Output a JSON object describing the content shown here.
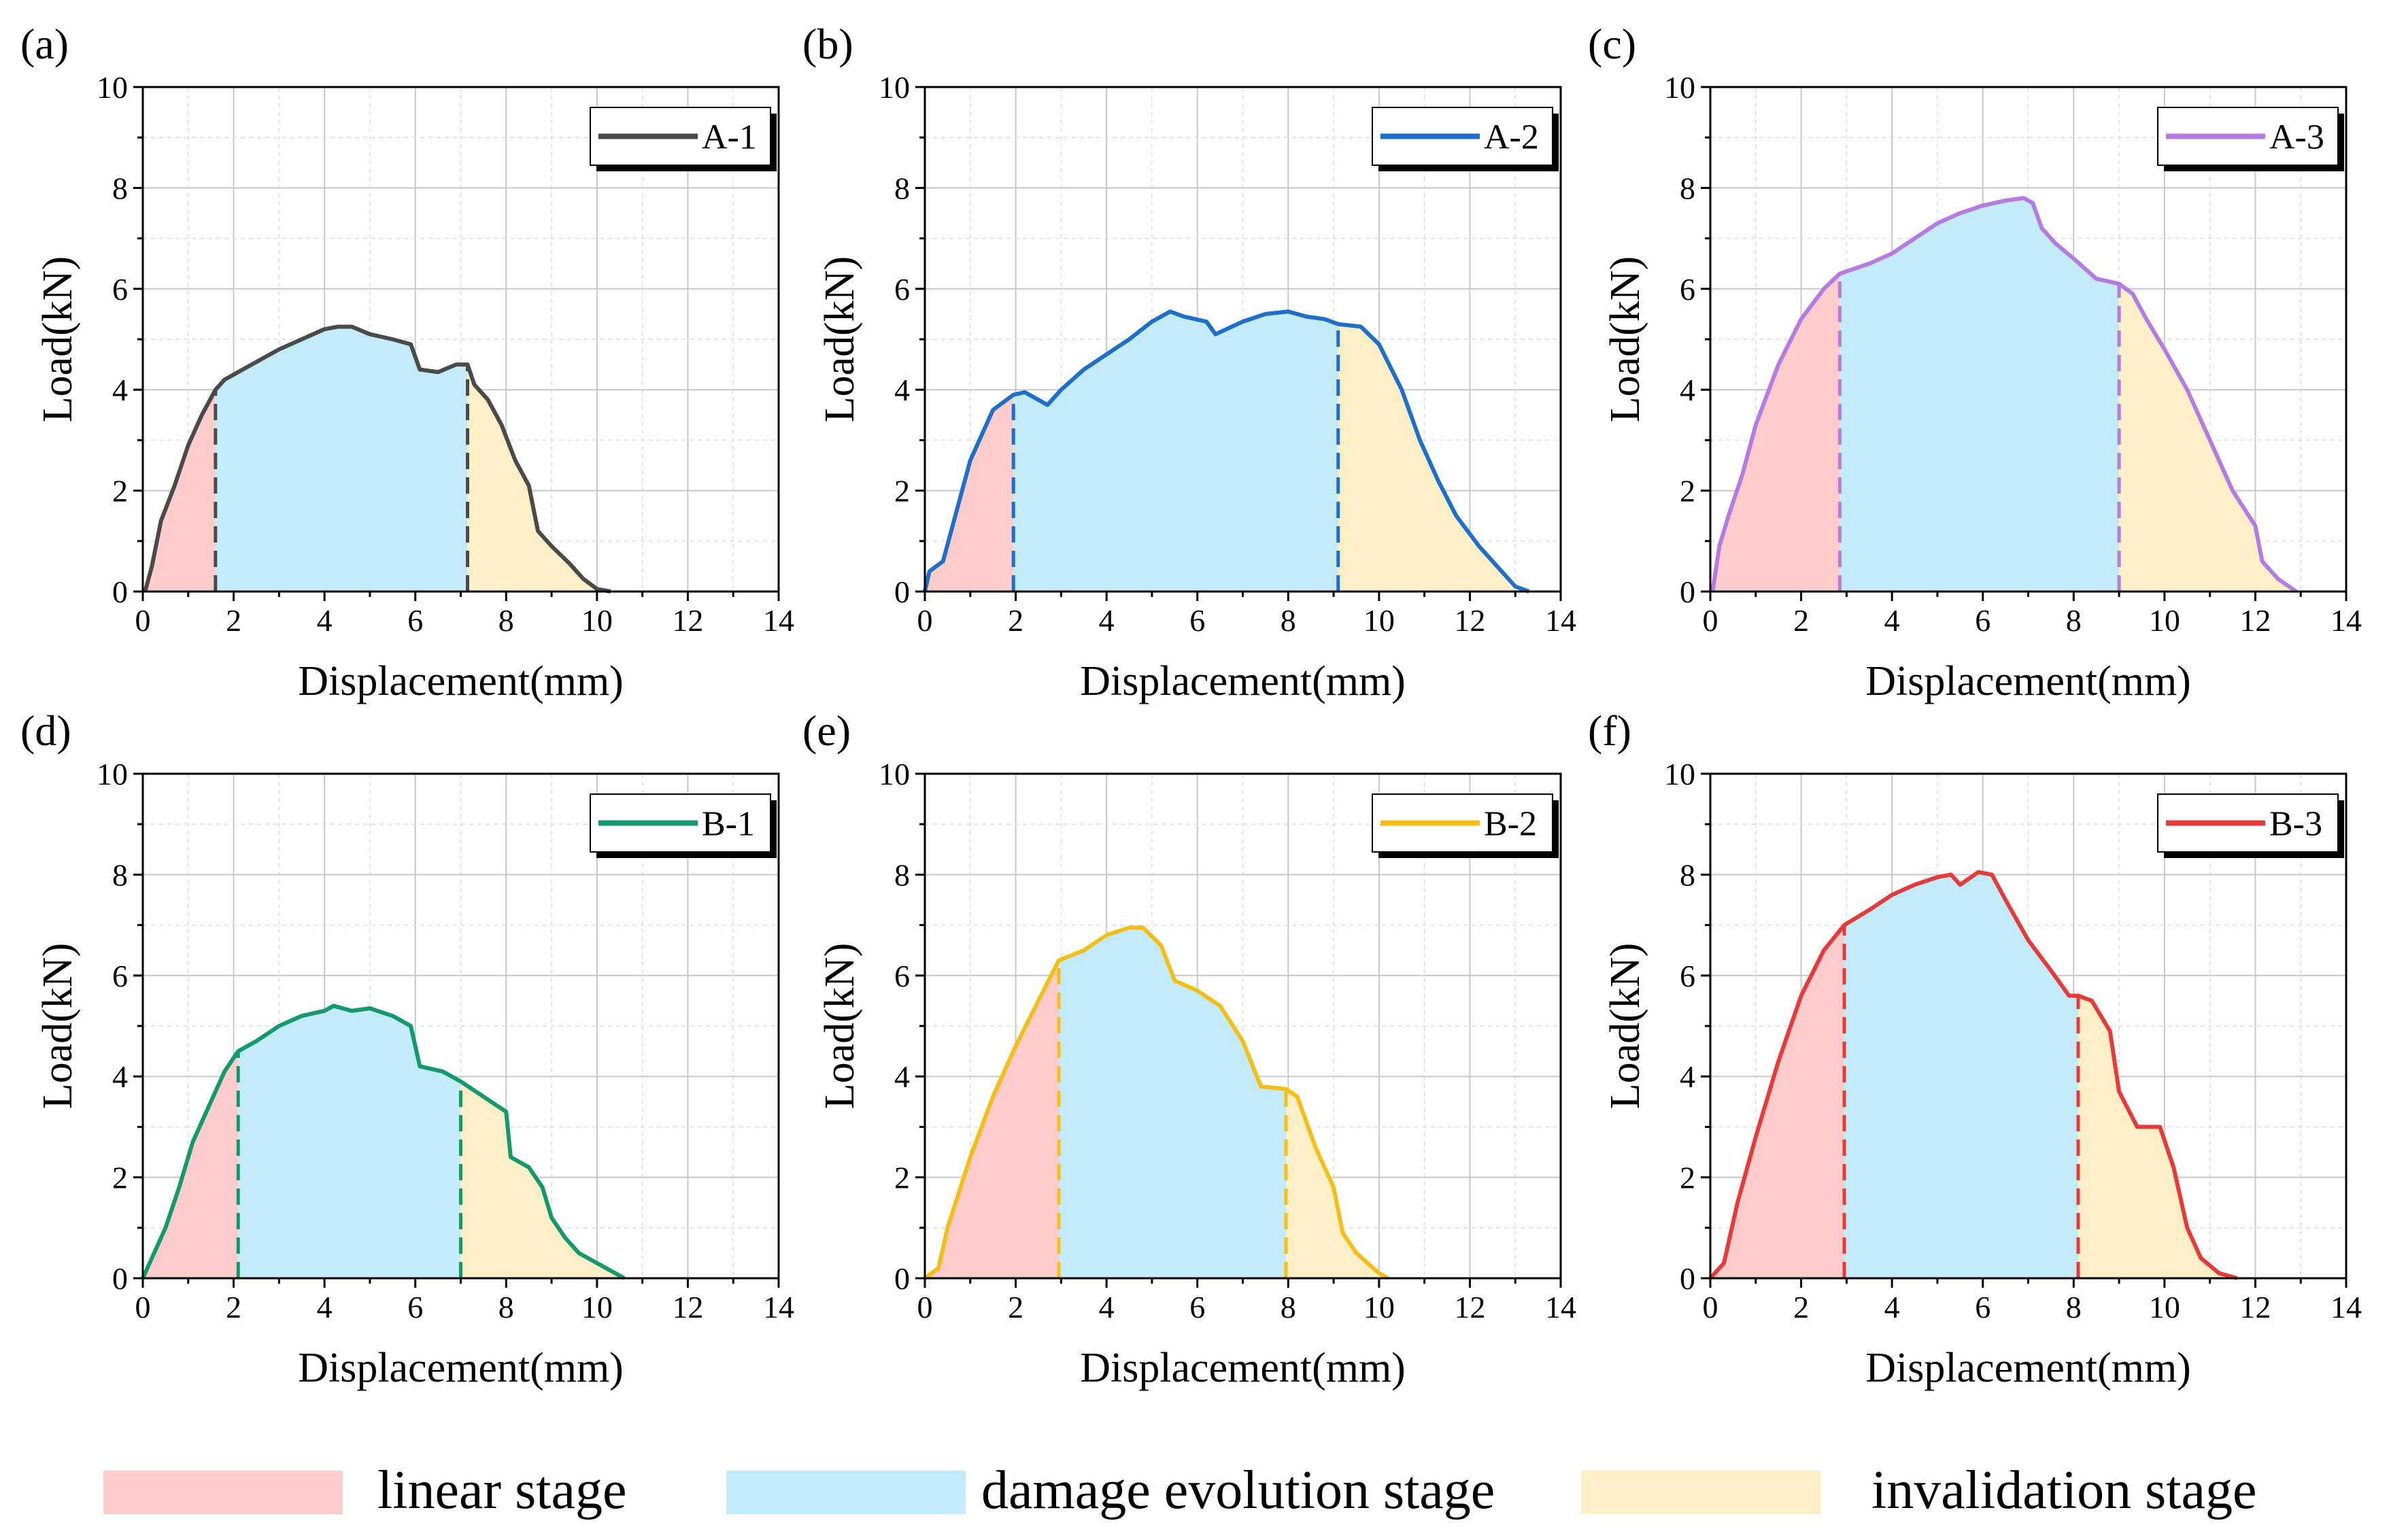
{
  "figure": {
    "stage_legend": [
      {
        "label": "linear stage",
        "color": "#ffcccc"
      },
      {
        "label": "damage evolution stage",
        "color": "#c3ebfa"
      },
      {
        "label": "invalidation stage",
        "color": "#fdf0c7"
      }
    ]
  },
  "chart_data": [
    {
      "type": "area",
      "panel": "(a)",
      "series_name": "A-1",
      "color": "#4a4a4a",
      "xlabel": "Displacement(mm)",
      "ylabel": "Load(kN)",
      "xlim": [
        0,
        14
      ],
      "ylim": [
        0,
        10
      ],
      "xticks": [
        0,
        2,
        4,
        6,
        8,
        10,
        12,
        14
      ],
      "yticks": [
        0,
        2,
        4,
        6,
        8,
        10
      ],
      "grid": true,
      "legend_position": "top-right",
      "stage_boundaries": [
        1.6,
        7.15
      ],
      "points": [
        [
          0.05,
          0
        ],
        [
          0.2,
          0.5
        ],
        [
          0.4,
          1.4
        ],
        [
          0.7,
          2.1
        ],
        [
          1.0,
          2.9
        ],
        [
          1.3,
          3.5
        ],
        [
          1.6,
          4.0
        ],
        [
          1.8,
          4.2
        ],
        [
          2.2,
          4.4
        ],
        [
          2.6,
          4.6
        ],
        [
          3.0,
          4.8
        ],
        [
          3.5,
          5.0
        ],
        [
          4.0,
          5.2
        ],
        [
          4.3,
          5.25
        ],
        [
          4.6,
          5.25
        ],
        [
          5.0,
          5.1
        ],
        [
          5.5,
          5.0
        ],
        [
          5.9,
          4.9
        ],
        [
          6.1,
          4.4
        ],
        [
          6.5,
          4.35
        ],
        [
          6.9,
          4.5
        ],
        [
          7.15,
          4.5
        ],
        [
          7.3,
          4.1
        ],
        [
          7.6,
          3.8
        ],
        [
          7.9,
          3.3
        ],
        [
          8.2,
          2.6
        ],
        [
          8.5,
          2.1
        ],
        [
          8.7,
          1.2
        ],
        [
          9.0,
          0.9
        ],
        [
          9.4,
          0.55
        ],
        [
          9.7,
          0.25
        ],
        [
          10.0,
          0.05
        ],
        [
          10.3,
          0.0
        ]
      ]
    },
    {
      "type": "area",
      "panel": "(b)",
      "series_name": "A-2",
      "color": "#1e6fcc",
      "xlabel": "Displacement(mm)",
      "ylabel": "Load(kN)",
      "xlim": [
        0,
        14
      ],
      "ylim": [
        0,
        10
      ],
      "xticks": [
        0,
        2,
        4,
        6,
        8,
        10,
        12,
        14
      ],
      "yticks": [
        0,
        2,
        4,
        6,
        8,
        10
      ],
      "grid": true,
      "legend_position": "top-right",
      "stage_boundaries": [
        1.95,
        9.1
      ],
      "points": [
        [
          0.0,
          0
        ],
        [
          0.1,
          0.4
        ],
        [
          0.4,
          0.6
        ],
        [
          0.7,
          1.6
        ],
        [
          1.0,
          2.6
        ],
        [
          1.5,
          3.6
        ],
        [
          1.95,
          3.9
        ],
        [
          2.2,
          3.95
        ],
        [
          2.5,
          3.8
        ],
        [
          2.7,
          3.7
        ],
        [
          3.0,
          4.0
        ],
        [
          3.5,
          4.4
        ],
        [
          4.0,
          4.7
        ],
        [
          4.5,
          5.0
        ],
        [
          5.0,
          5.35
        ],
        [
          5.4,
          5.55
        ],
        [
          5.7,
          5.45
        ],
        [
          6.2,
          5.35
        ],
        [
          6.4,
          5.1
        ],
        [
          7.0,
          5.35
        ],
        [
          7.5,
          5.5
        ],
        [
          8.0,
          5.55
        ],
        [
          8.4,
          5.45
        ],
        [
          8.8,
          5.4
        ],
        [
          9.1,
          5.3
        ],
        [
          9.6,
          5.25
        ],
        [
          10.0,
          4.9
        ],
        [
          10.5,
          4.0
        ],
        [
          10.9,
          3.0
        ],
        [
          11.3,
          2.2
        ],
        [
          11.7,
          1.5
        ],
        [
          12.2,
          0.9
        ],
        [
          12.7,
          0.4
        ],
        [
          13.0,
          0.1
        ],
        [
          13.3,
          0.0
        ]
      ]
    },
    {
      "type": "area",
      "panel": "(c)",
      "series_name": "A-3",
      "color": "#b57be0",
      "xlabel": "Displacement(mm)",
      "ylabel": "Load(kN)",
      "xlim": [
        0,
        14
      ],
      "ylim": [
        0,
        10
      ],
      "xticks": [
        0,
        2,
        4,
        6,
        8,
        10,
        12,
        14
      ],
      "yticks": [
        0,
        2,
        4,
        6,
        8,
        10
      ],
      "grid": true,
      "legend_position": "top-right",
      "stage_boundaries": [
        2.85,
        9.0
      ],
      "points": [
        [
          0.05,
          0
        ],
        [
          0.2,
          0.9
        ],
        [
          0.4,
          1.5
        ],
        [
          0.7,
          2.3
        ],
        [
          1.0,
          3.3
        ],
        [
          1.5,
          4.5
        ],
        [
          2.0,
          5.4
        ],
        [
          2.5,
          6.0
        ],
        [
          2.85,
          6.3
        ],
        [
          3.5,
          6.5
        ],
        [
          4.0,
          6.7
        ],
        [
          4.5,
          7.0
        ],
        [
          5.0,
          7.3
        ],
        [
          5.5,
          7.5
        ],
        [
          6.0,
          7.65
        ],
        [
          6.5,
          7.75
        ],
        [
          6.9,
          7.8
        ],
        [
          7.1,
          7.7
        ],
        [
          7.3,
          7.2
        ],
        [
          7.6,
          6.9
        ],
        [
          8.0,
          6.6
        ],
        [
          8.5,
          6.2
        ],
        [
          9.0,
          6.1
        ],
        [
          9.3,
          5.9
        ],
        [
          9.6,
          5.4
        ],
        [
          10.0,
          4.8
        ],
        [
          10.5,
          4.0
        ],
        [
          11.0,
          3.0
        ],
        [
          11.5,
          2.0
        ],
        [
          12.0,
          1.3
        ],
        [
          12.15,
          0.6
        ],
        [
          12.5,
          0.25
        ],
        [
          12.9,
          0.0
        ]
      ]
    },
    {
      "type": "area",
      "panel": "(d)",
      "series_name": "B-1",
      "color": "#129a6a",
      "xlabel": "Displacement(mm)",
      "ylabel": "Load(kN)",
      "xlim": [
        0,
        14
      ],
      "ylim": [
        0,
        10
      ],
      "xticks": [
        0,
        2,
        4,
        6,
        8,
        10,
        12,
        14
      ],
      "yticks": [
        0,
        2,
        4,
        6,
        8,
        10
      ],
      "grid": true,
      "legend_position": "top-right",
      "stage_boundaries": [
        2.1,
        7.0
      ],
      "points": [
        [
          0.0,
          0
        ],
        [
          0.2,
          0.4
        ],
        [
          0.5,
          1.0
        ],
        [
          0.8,
          1.8
        ],
        [
          1.1,
          2.7
        ],
        [
          1.5,
          3.5
        ],
        [
          1.8,
          4.1
        ],
        [
          2.1,
          4.5
        ],
        [
          2.5,
          4.7
        ],
        [
          3.0,
          5.0
        ],
        [
          3.5,
          5.2
        ],
        [
          4.0,
          5.3
        ],
        [
          4.2,
          5.4
        ],
        [
          4.6,
          5.3
        ],
        [
          5.0,
          5.35
        ],
        [
          5.5,
          5.2
        ],
        [
          5.9,
          5.0
        ],
        [
          6.1,
          4.2
        ],
        [
          6.6,
          4.1
        ],
        [
          7.0,
          3.9
        ],
        [
          7.5,
          3.6
        ],
        [
          8.0,
          3.3
        ],
        [
          8.1,
          2.4
        ],
        [
          8.5,
          2.2
        ],
        [
          8.8,
          1.8
        ],
        [
          9.0,
          1.2
        ],
        [
          9.3,
          0.8
        ],
        [
          9.6,
          0.5
        ],
        [
          10.0,
          0.3
        ],
        [
          10.5,
          0.05
        ],
        [
          10.6,
          0.0
        ]
      ]
    },
    {
      "type": "area",
      "panel": "(e)",
      "series_name": "B-2",
      "color": "#f5be16",
      "xlabel": "Displacement(mm)",
      "ylabel": "Load(kN)",
      "xlim": [
        0,
        14
      ],
      "ylim": [
        0,
        10
      ],
      "xticks": [
        0,
        2,
        4,
        6,
        8,
        10,
        12,
        14
      ],
      "yticks": [
        0,
        2,
        4,
        6,
        8,
        10
      ],
      "grid": true,
      "legend_position": "top-right",
      "stage_boundaries": [
        2.95,
        7.95
      ],
      "points": [
        [
          0.0,
          0
        ],
        [
          0.3,
          0.2
        ],
        [
          0.5,
          1.0
        ],
        [
          1.0,
          2.4
        ],
        [
          1.5,
          3.6
        ],
        [
          2.0,
          4.6
        ],
        [
          2.5,
          5.5
        ],
        [
          2.95,
          6.3
        ],
        [
          3.5,
          6.5
        ],
        [
          4.0,
          6.8
        ],
        [
          4.5,
          6.95
        ],
        [
          4.8,
          6.95
        ],
        [
          5.2,
          6.6
        ],
        [
          5.5,
          5.9
        ],
        [
          6.0,
          5.7
        ],
        [
          6.5,
          5.4
        ],
        [
          7.0,
          4.7
        ],
        [
          7.4,
          3.8
        ],
        [
          7.95,
          3.75
        ],
        [
          8.2,
          3.6
        ],
        [
          8.6,
          2.6
        ],
        [
          9.0,
          1.8
        ],
        [
          9.2,
          0.9
        ],
        [
          9.5,
          0.5
        ],
        [
          10.0,
          0.1
        ],
        [
          10.2,
          0.0
        ]
      ]
    },
    {
      "type": "area",
      "panel": "(f)",
      "series_name": "B-3",
      "color": "#e83a3a",
      "xlabel": "Displacement(mm)",
      "ylabel": "Load(kN)",
      "xlim": [
        0,
        14
      ],
      "ylim": [
        0,
        10
      ],
      "xticks": [
        0,
        2,
        4,
        6,
        8,
        10,
        12,
        14
      ],
      "yticks": [
        0,
        2,
        4,
        6,
        8,
        10
      ],
      "grid": true,
      "legend_position": "top-right",
      "stage_boundaries": [
        2.95,
        8.1
      ],
      "points": [
        [
          0.0,
          0
        ],
        [
          0.3,
          0.3
        ],
        [
          0.6,
          1.5
        ],
        [
          1.0,
          2.8
        ],
        [
          1.5,
          4.3
        ],
        [
          2.0,
          5.6
        ],
        [
          2.5,
          6.5
        ],
        [
          2.95,
          7.0
        ],
        [
          3.5,
          7.3
        ],
        [
          4.0,
          7.6
        ],
        [
          4.5,
          7.8
        ],
        [
          5.0,
          7.95
        ],
        [
          5.3,
          8.0
        ],
        [
          5.5,
          7.8
        ],
        [
          5.9,
          8.05
        ],
        [
          6.2,
          8.0
        ],
        [
          6.5,
          7.5
        ],
        [
          7.0,
          6.7
        ],
        [
          7.5,
          6.1
        ],
        [
          7.9,
          5.6
        ],
        [
          8.1,
          5.6
        ],
        [
          8.4,
          5.5
        ],
        [
          8.8,
          4.9
        ],
        [
          9.0,
          3.7
        ],
        [
          9.4,
          3.0
        ],
        [
          9.9,
          3.0
        ],
        [
          10.2,
          2.2
        ],
        [
          10.5,
          1.0
        ],
        [
          10.8,
          0.4
        ],
        [
          11.2,
          0.1
        ],
        [
          11.6,
          0.0
        ]
      ]
    }
  ]
}
